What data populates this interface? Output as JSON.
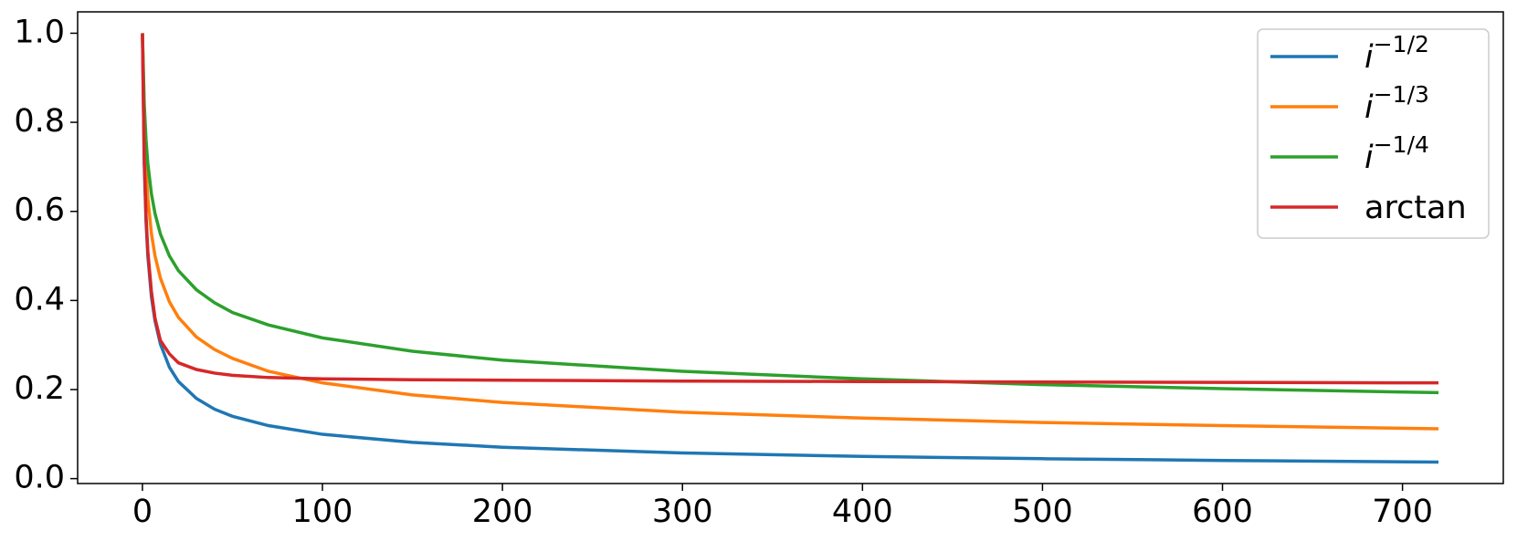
{
  "chart_data": {
    "type": "line",
    "x": [
      0,
      1,
      2,
      3,
      5,
      7,
      10,
      15,
      20,
      30,
      40,
      50,
      70,
      100,
      150,
      200,
      300,
      400,
      500,
      600,
      720
    ],
    "series": [
      {
        "name": "i−1/2",
        "color": "#1f77b4",
        "values": [
          1,
          0.707,
          0.577,
          0.5,
          0.408,
          0.354,
          0.302,
          0.25,
          0.218,
          0.18,
          0.156,
          0.14,
          0.119,
          0.0995,
          0.0814,
          0.0705,
          0.0576,
          0.0499,
          0.0447,
          0.0408,
          0.0372
        ]
      },
      {
        "name": "i−1/3",
        "color": "#ff7f0e",
        "values": [
          1,
          0.794,
          0.693,
          0.63,
          0.55,
          0.5,
          0.45,
          0.397,
          0.362,
          0.318,
          0.29,
          0.27,
          0.241,
          0.215,
          0.188,
          0.171,
          0.149,
          0.136,
          0.126,
          0.119,
          0.112
        ]
      },
      {
        "name": "i−1/4",
        "color": "#2ca02c",
        "values": [
          1,
          0.841,
          0.76,
          0.707,
          0.639,
          0.595,
          0.549,
          0.5,
          0.467,
          0.424,
          0.395,
          0.373,
          0.345,
          0.316,
          0.286,
          0.266,
          0.241,
          0.224,
          0.211,
          0.202,
          0.193
        ]
      },
      {
        "name": "arctan",
        "color": "#d62728",
        "values": [
          1,
          0.72,
          0.59,
          0.51,
          0.42,
          0.36,
          0.31,
          0.28,
          0.26,
          0.245,
          0.237,
          0.232,
          0.227,
          0.224,
          0.222,
          0.221,
          0.219,
          0.218,
          0.217,
          0.216,
          0.215
        ]
      }
    ],
    "xlim": [
      -36,
      756
    ],
    "ylim": [
      -0.011,
      1.048
    ],
    "xticks": [
      0,
      100,
      200,
      300,
      400,
      500,
      600,
      700
    ],
    "yticks": [
      {
        "value": 0,
        "label": "0.0"
      },
      0.2,
      0.4,
      0.6,
      0.8,
      {
        "value": 1,
        "label": "1.0"
      }
    ],
    "legend": "upper right",
    "grid": false
  }
}
